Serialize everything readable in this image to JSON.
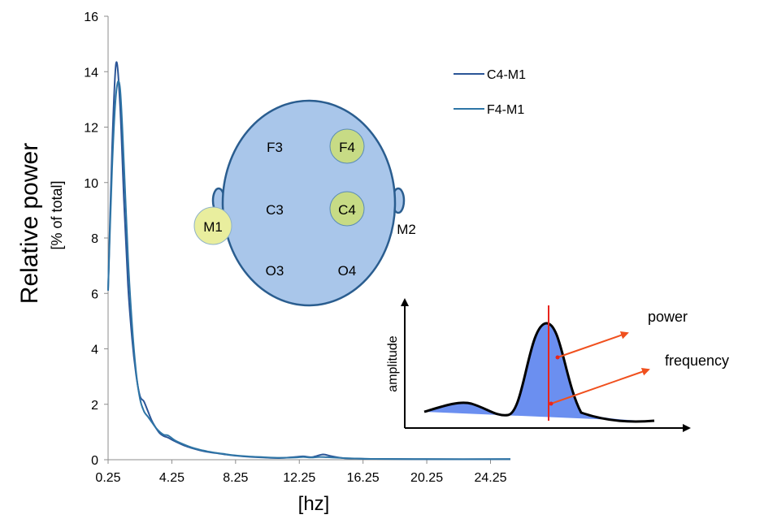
{
  "chart_data": {
    "type": "line",
    "title": "",
    "xlabel": "[hz]",
    "ylabel": "Relative power",
    "ylabel_sub": "[% of total]",
    "xlim": [
      0.25,
      25.5
    ],
    "ylim": [
      0,
      16
    ],
    "x_ticks": [
      "0.25",
      "4.25",
      "8.25",
      "12.25",
      "16.25",
      "20.25",
      "24.25"
    ],
    "y_ticks": [
      "0",
      "2",
      "4",
      "6",
      "8",
      "10",
      "12",
      "14",
      "16"
    ],
    "grid": false,
    "legend_position": "top-right",
    "series": [
      {
        "name": "C4-M1",
        "color": "#2b5597",
        "x": [
          0.25,
          0.5,
          0.75,
          1,
          1.25,
          1.5,
          1.75,
          2,
          2.25,
          2.5,
          2.75,
          3,
          3.25,
          3.5,
          3.75,
          4,
          4.25,
          4.5,
          5,
          5.5,
          6,
          6.5,
          7,
          7.5,
          8,
          9,
          10,
          11,
          12,
          12.5,
          13,
          13.25,
          13.75,
          14.25,
          15,
          16,
          17,
          20,
          25.5
        ],
        "y": [
          6.1,
          11.2,
          14.3,
          12.8,
          9.3,
          6.3,
          4.4,
          3.1,
          2.3,
          2.1,
          1.75,
          1.4,
          1.15,
          0.95,
          0.85,
          0.8,
          0.72,
          0.65,
          0.52,
          0.42,
          0.34,
          0.28,
          0.24,
          0.2,
          0.16,
          0.11,
          0.08,
          0.06,
          0.1,
          0.12,
          0.09,
          0.12,
          0.19,
          0.13,
          0.06,
          0.04,
          0.03,
          0.02,
          0.02
        ]
      },
      {
        "name": "F4-M1",
        "color": "#2e75a6",
        "x": [
          0.25,
          0.5,
          0.75,
          1,
          1.25,
          1.5,
          1.75,
          2,
          2.25,
          2.5,
          2.75,
          3,
          3.25,
          3.5,
          3.75,
          4,
          4.25,
          4.5,
          5,
          5.5,
          6,
          6.5,
          7,
          7.5,
          8,
          9,
          10,
          11,
          12,
          12.5,
          13,
          13.5,
          14,
          15,
          16,
          17,
          20,
          25.5
        ],
        "y": [
          6.1,
          10.5,
          13.2,
          13.4,
          10.6,
          7.3,
          4.9,
          3.2,
          2.2,
          1.75,
          1.55,
          1.35,
          1.15,
          1.0,
          0.9,
          0.88,
          0.78,
          0.68,
          0.55,
          0.44,
          0.36,
          0.3,
          0.25,
          0.21,
          0.17,
          0.12,
          0.09,
          0.07,
          0.08,
          0.1,
          0.08,
          0.1,
          0.09,
          0.06,
          0.04,
          0.03,
          0.02,
          0.02
        ]
      }
    ]
  },
  "electrode_diagram": {
    "electrodes": [
      {
        "label": "F3",
        "highlighted": false
      },
      {
        "label": "F4",
        "highlighted": true
      },
      {
        "label": "C3",
        "highlighted": false
      },
      {
        "label": "C4",
        "highlighted": true
      },
      {
        "label": "O3",
        "highlighted": false
      },
      {
        "label": "O4",
        "highlighted": false
      },
      {
        "label": "M1",
        "highlighted": true
      },
      {
        "label": "M2",
        "highlighted": false
      }
    ],
    "head_color": "#a9c6ea",
    "outline_color": "#2a5d8f",
    "highlight_color": "#c7db85"
  },
  "inset": {
    "ylabel": "amplitude",
    "power_label": "power",
    "frequency_label": "frequency",
    "fill_color": "#6b8ff0",
    "marker_color": "#e8251c",
    "arrow_color": "#f0501e"
  }
}
